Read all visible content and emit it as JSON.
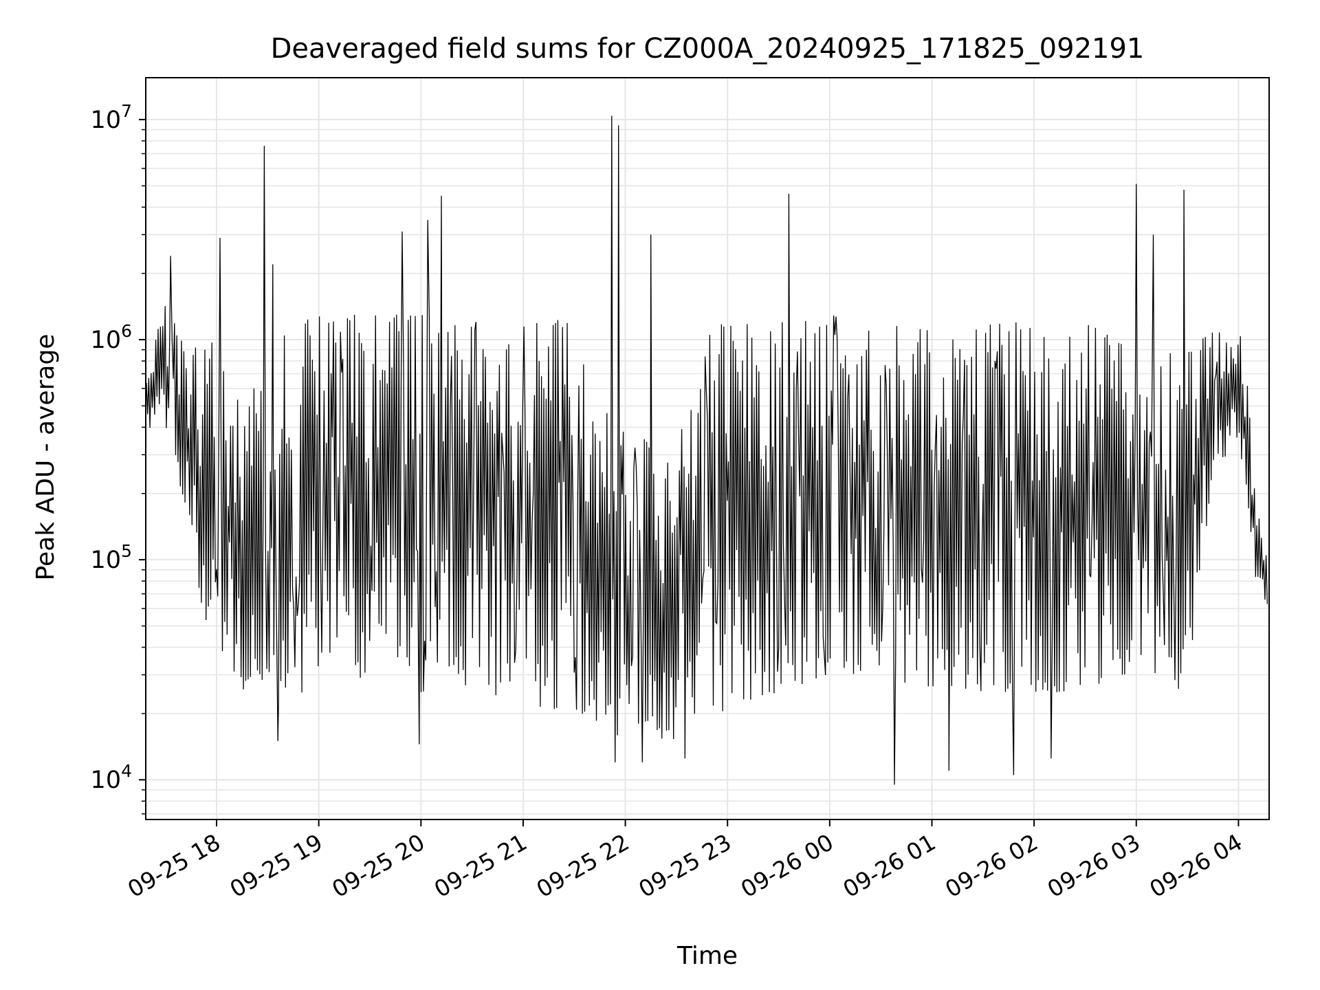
{
  "chart_data": {
    "type": "line",
    "title": "Deaveraged field sums for CZ000A_20240925_171825_092191",
    "xlabel": "Time",
    "ylabel": "Peak ADU - average",
    "yscale": "log",
    "grid": true,
    "line_color": "#000000",
    "ylim": [
      6600,
      15500000
    ],
    "xlim": [
      "2024-09-25 17:18:25",
      "2024-09-26 04:18:00"
    ],
    "x_ticks": [
      {
        "time": "2024-09-25 18:00",
        "label": "09-25 18"
      },
      {
        "time": "2024-09-25 19:00",
        "label": "09-25 19"
      },
      {
        "time": "2024-09-25 20:00",
        "label": "09-25 20"
      },
      {
        "time": "2024-09-25 21:00",
        "label": "09-25 21"
      },
      {
        "time": "2024-09-25 22:00",
        "label": "09-25 22"
      },
      {
        "time": "2024-09-25 23:00",
        "label": "09-25 23"
      },
      {
        "time": "2024-09-26 00:00",
        "label": "09-26 00"
      },
      {
        "time": "2024-09-26 01:00",
        "label": "09-26 01"
      },
      {
        "time": "2024-09-26 02:00",
        "label": "09-26 02"
      },
      {
        "time": "2024-09-26 03:00",
        "label": "09-26 03"
      },
      {
        "time": "2024-09-26 04:00",
        "label": "09-26 04"
      }
    ],
    "y_ticks": [
      {
        "value": 10000,
        "base": "10",
        "exp": "4"
      },
      {
        "value": 100000,
        "base": "10",
        "exp": "5"
      },
      {
        "value": 1000000,
        "base": "10",
        "exp": "6"
      },
      {
        "value": 10000000,
        "base": "10",
        "exp": "7"
      }
    ],
    "series": [
      {
        "envelope": [
          {
            "time": "2024-09-25 17:18",
            "low": 400000,
            "high": 700000
          },
          {
            "time": "2024-09-25 17:30",
            "low": 350000,
            "high": 1500000
          },
          {
            "time": "2024-09-25 17:40",
            "low": 200000,
            "high": 1000000
          },
          {
            "time": "2024-09-25 17:50",
            "low": 60000,
            "high": 900000
          },
          {
            "time": "2024-09-25 18:00",
            "low": 40000,
            "high": 1000000
          },
          {
            "time": "2024-09-25 18:15",
            "low": 25000,
            "high": 500000
          },
          {
            "time": "2024-09-25 18:30",
            "low": 20000,
            "high": 1200000
          },
          {
            "time": "2024-09-25 19:00",
            "low": 25000,
            "high": 1300000
          },
          {
            "time": "2024-09-25 19:30",
            "low": 30000,
            "high": 1300000
          },
          {
            "time": "2024-09-25 20:00",
            "low": 25000,
            "high": 1300000
          },
          {
            "time": "2024-09-25 20:30",
            "low": 25000,
            "high": 1300000
          },
          {
            "time": "2024-09-25 21:00",
            "low": 22000,
            "high": 1300000
          },
          {
            "time": "2024-09-25 21:30",
            "low": 20000,
            "high": 1200000
          },
          {
            "time": "2024-09-25 21:45",
            "low": 18000,
            "high": 500000
          },
          {
            "time": "2024-09-25 22:00",
            "low": 15000,
            "high": 400000
          },
          {
            "time": "2024-09-25 22:30",
            "low": 15000,
            "high": 300000
          },
          {
            "time": "2024-09-25 22:45",
            "low": 18000,
            "high": 1100000
          },
          {
            "time": "2024-09-25 23:00",
            "low": 20000,
            "high": 1200000
          },
          {
            "time": "2024-09-25 23:30",
            "low": 25000,
            "high": 1200000
          },
          {
            "time": "2024-09-26 00:00",
            "low": 30000,
            "high": 1300000
          },
          {
            "time": "2024-09-26 00:30",
            "low": 30000,
            "high": 1200000
          },
          {
            "time": "2024-09-26 01:00",
            "low": 25000,
            "high": 1100000
          },
          {
            "time": "2024-09-26 01:30",
            "low": 25000,
            "high": 1200000
          },
          {
            "time": "2024-09-26 02:00",
            "low": 25000,
            "high": 1200000
          },
          {
            "time": "2024-09-26 02:30",
            "low": 25000,
            "high": 1200000
          },
          {
            "time": "2024-09-26 02:50",
            "low": 30000,
            "high": 1000000
          },
          {
            "time": "2024-09-26 03:00",
            "low": 30000,
            "high": 900000
          },
          {
            "time": "2024-09-26 03:30",
            "low": 25000,
            "high": 900000
          },
          {
            "time": "2024-09-26 03:45",
            "low": 250000,
            "high": 1100000
          },
          {
            "time": "2024-09-26 04:00",
            "low": 350000,
            "high": 1200000
          },
          {
            "time": "2024-09-26 04:05",
            "low": 200000,
            "high": 700000
          },
          {
            "time": "2024-09-26 04:10",
            "low": 80000,
            "high": 180000
          },
          {
            "time": "2024-09-26 04:18",
            "low": 55000,
            "high": 100000
          }
        ],
        "spikes": [
          {
            "time": "2024-09-25 17:33",
            "value": 2400000
          },
          {
            "time": "2024-09-25 18:02",
            "value": 2900000
          },
          {
            "time": "2024-09-25 18:28",
            "value": 7600000
          },
          {
            "time": "2024-09-25 18:33",
            "value": 2200000
          },
          {
            "time": "2024-09-25 19:49",
            "value": 3100000
          },
          {
            "time": "2024-09-25 20:04",
            "value": 3500000
          },
          {
            "time": "2024-09-25 20:12",
            "value": 4500000
          },
          {
            "time": "2024-09-25 21:52",
            "value": 10400000
          },
          {
            "time": "2024-09-25 21:56",
            "value": 9400000
          },
          {
            "time": "2024-09-25 22:15",
            "value": 3000000
          },
          {
            "time": "2024-09-25 23:36",
            "value": 4600000
          },
          {
            "time": "2024-09-26 03:00",
            "value": 5100000
          },
          {
            "time": "2024-09-26 03:10",
            "value": 3000000
          },
          {
            "time": "2024-09-26 03:28",
            "value": 4800000
          },
          {
            "time": "2024-09-26 00:38",
            "value": 9500
          },
          {
            "time": "2024-09-26 01:10",
            "value": 11000
          },
          {
            "time": "2024-09-26 01:48",
            "value": 10500
          },
          {
            "time": "2024-09-26 02:10",
            "value": 12500
          },
          {
            "time": "2024-09-25 21:54",
            "value": 12000
          },
          {
            "time": "2024-09-25 22:10",
            "value": 12000
          },
          {
            "time": "2024-09-25 22:35",
            "value": 12500
          },
          {
            "time": "2024-09-25 18:36",
            "value": 15000
          },
          {
            "time": "2024-09-25 19:59",
            "value": 14500
          }
        ]
      }
    ]
  }
}
